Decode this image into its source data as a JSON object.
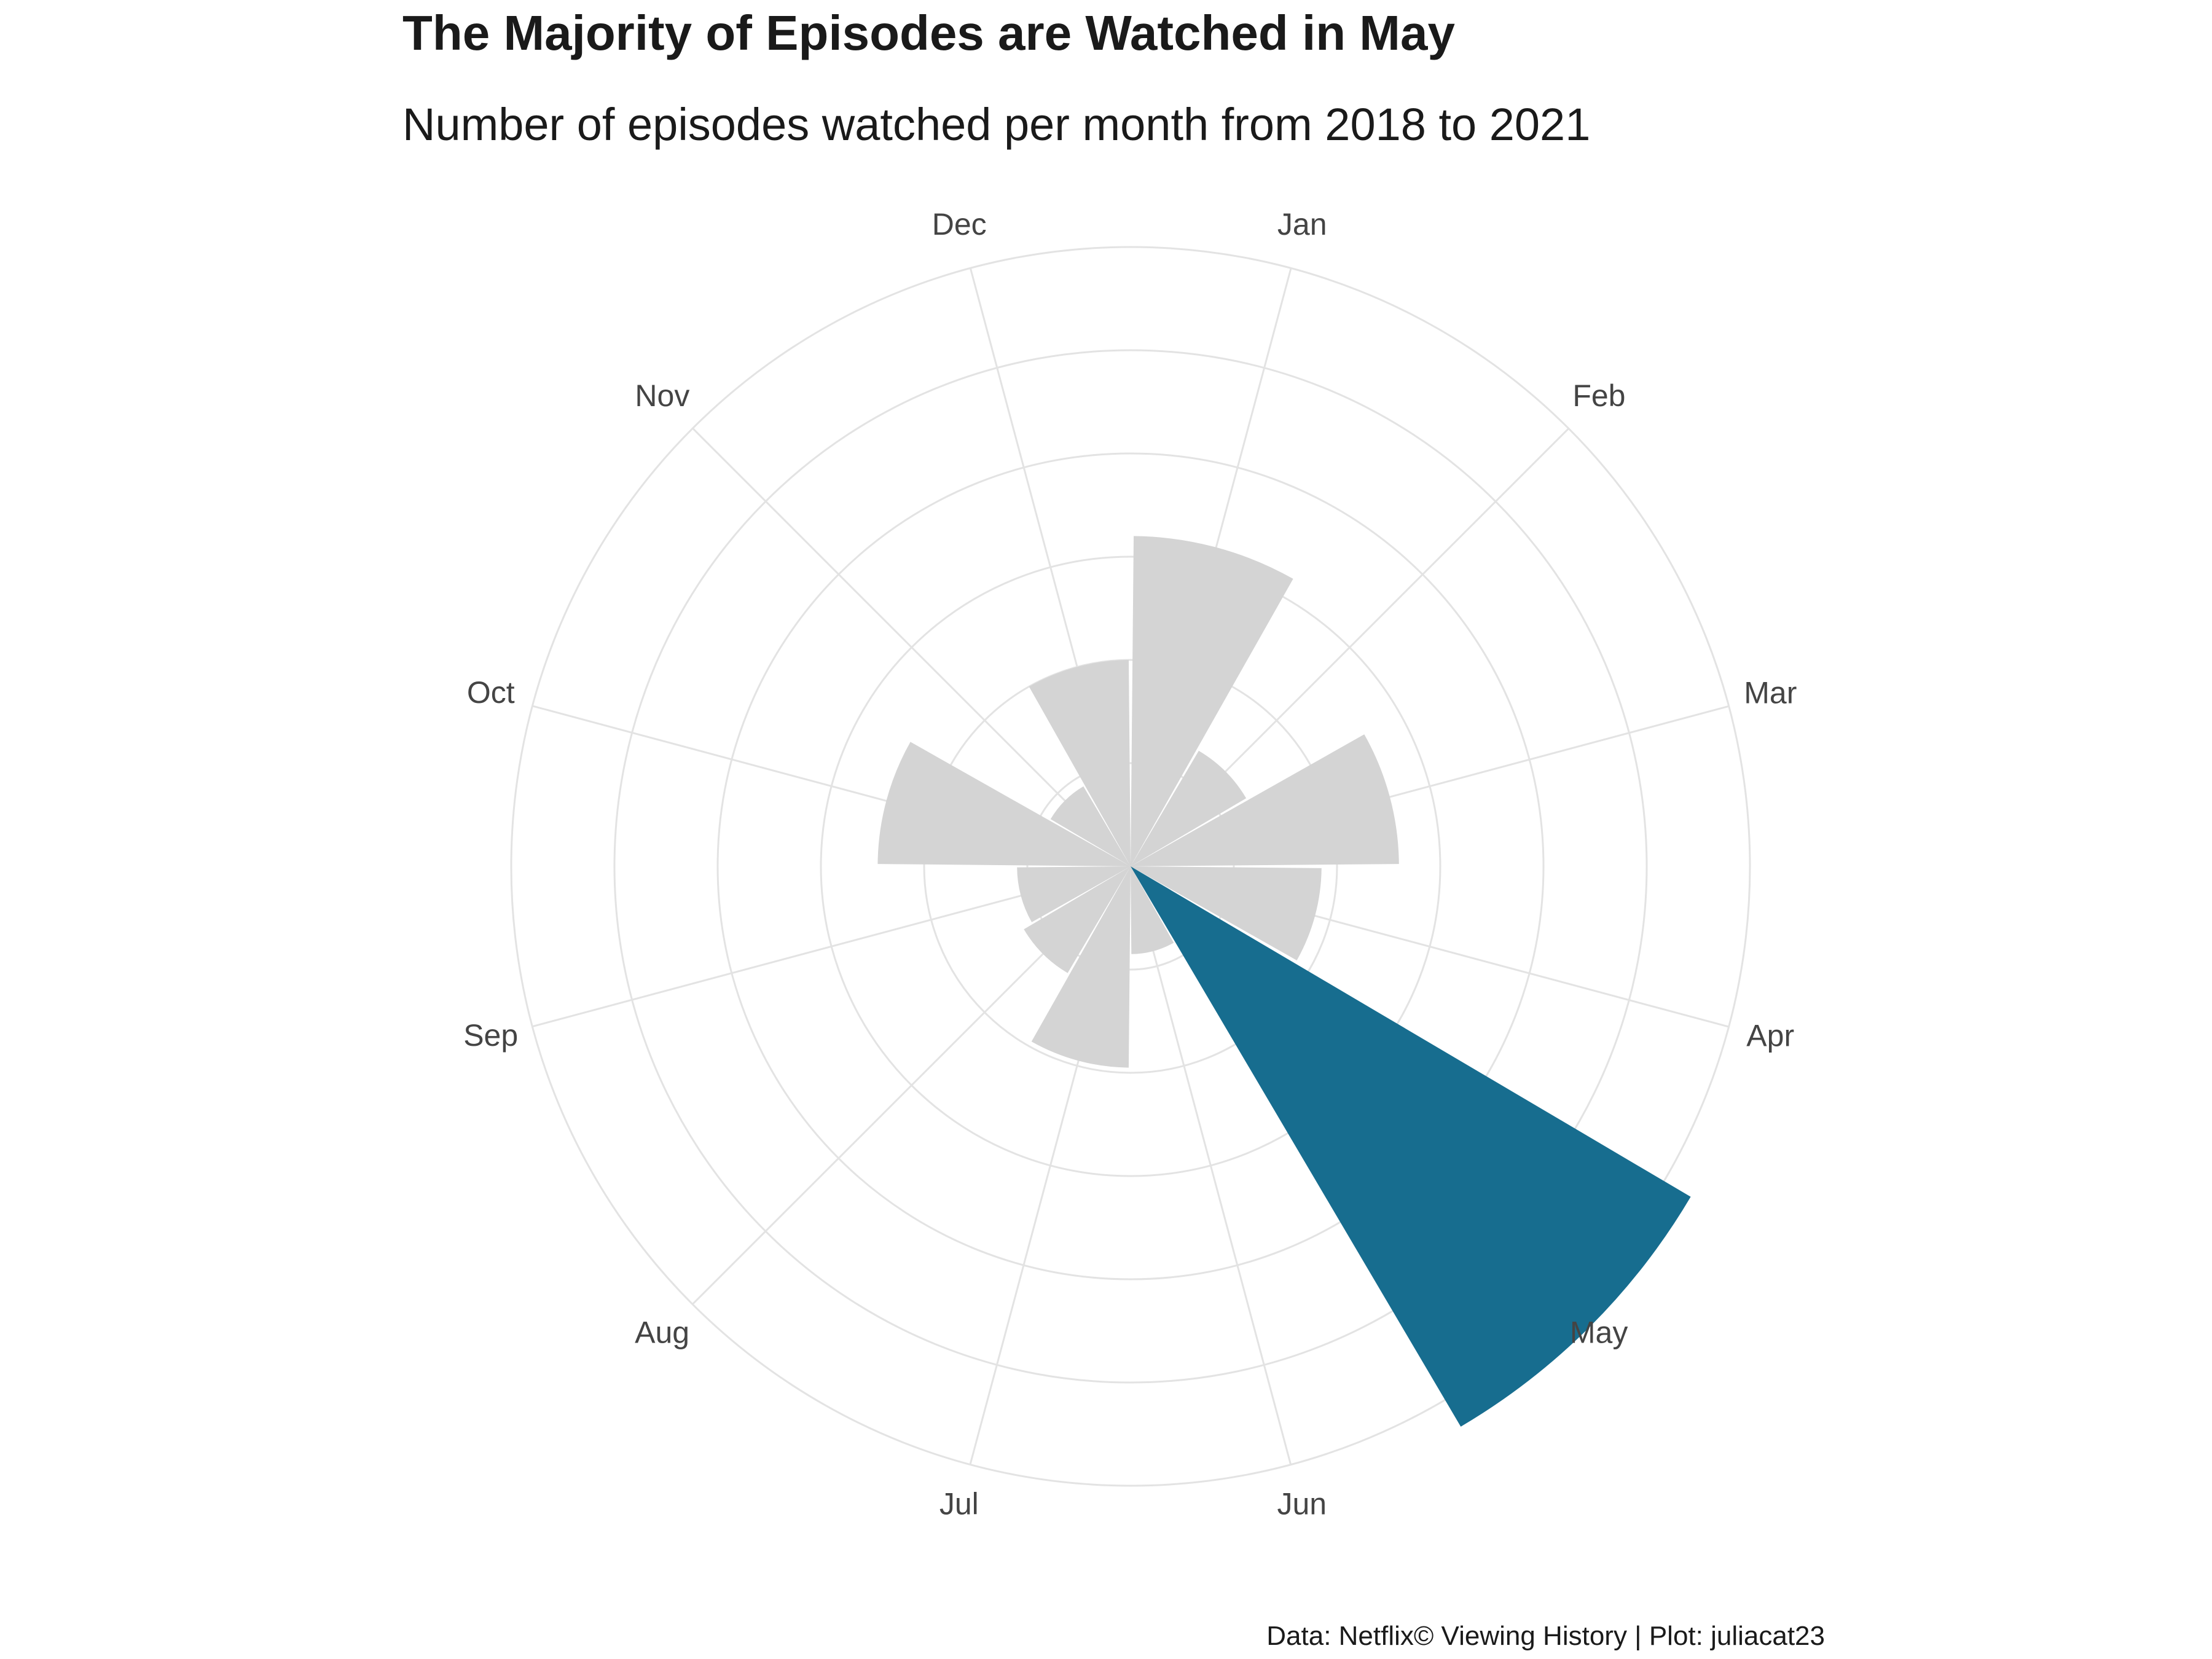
{
  "chart_data": {
    "type": "bar",
    "coordinate_system": "polar",
    "title": "The Majority of Episodes are Watched in May",
    "subtitle": "Number of episodes watched per month from 2018 to 2021",
    "caption": "Data: Netflix© Viewing History | Plot: juliacat23",
    "categories": [
      "Jan",
      "Feb",
      "Mar",
      "Apr",
      "May",
      "Jun",
      "Jul",
      "Aug",
      "Sep",
      "Oct",
      "Nov",
      "Dec"
    ],
    "values": [
      3.2,
      1.3,
      2.6,
      1.85,
      6.3,
      0.85,
      1.95,
      1.2,
      1.1,
      2.45,
      0.9,
      2.0
    ],
    "grid": true,
    "grid_rings": [
      1,
      2,
      3,
      4,
      5,
      6
    ],
    "radial_max": 6,
    "highlight": "May",
    "colors": {
      "bar": "#d4d4d4",
      "highlight": "#176d8f",
      "grid": "#e3e3e3",
      "label": "#444444",
      "text": "#1a1a1a"
    }
  }
}
